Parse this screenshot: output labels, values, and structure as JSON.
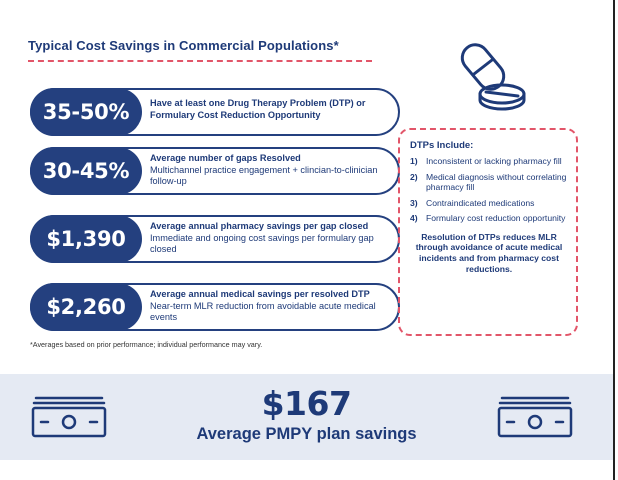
{
  "title": "Typical Cost Savings in Commercial Populations*",
  "stats": [
    {
      "value": "35-50%",
      "heading": "Have at least one Drug Therapy Problem (DTP) or Formulary Cost Reduction Opportunity",
      "detail": ""
    },
    {
      "value": "30-45%",
      "heading": "Average number of gaps Resolved",
      "detail": "Multichannel practice engagement + clincian-to-clinician follow-up"
    },
    {
      "value": "$1,390",
      "heading": "Average annual pharmacy savings per gap closed",
      "detail": "Immediate and ongoing cost savings per formulary gap closed"
    },
    {
      "value": "$2,260",
      "heading": "Average annual medical savings per resolved DTP",
      "detail": "Near-term MLR reduction from avoidable acute medical events"
    }
  ],
  "footnote": "*Averages based on prior performance; individual performance may vary.",
  "dtp": {
    "title": "DTPs Include:",
    "items": [
      {
        "num": "1)",
        "text": "Inconsistent or lacking pharmacy fill"
      },
      {
        "num": "2)",
        "text": "Medical diagnosis without correlating pharmacy fill"
      },
      {
        "num": "3)",
        "text": "Contraindicated medications"
      },
      {
        "num": "4)",
        "text": "Formulary cost reduction opportunity"
      }
    ],
    "summary": "Resolution of DTPs reduces MLR through avoidance of acute medical incidents and from pharmacy cost reductions."
  },
  "banner": {
    "value": "$167",
    "label": "Average PMPY plan savings"
  },
  "colors": {
    "navy": "#1e3a78",
    "accent_pink": "#e25569",
    "band": "#e5eaf3"
  },
  "icons": {
    "pill": "pill-capsule-icon",
    "money": "money-bill-icon"
  }
}
